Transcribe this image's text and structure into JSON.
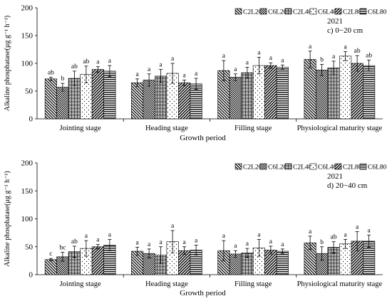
{
  "chart_data": [
    {
      "type": "bar",
      "year_label": "2021",
      "panel_label": "c) 0−20 cm",
      "xlabel": "Growth period",
      "ylabel": "Alkaline phosphatase(μg g⁻¹ h⁻¹)",
      "ylim": [
        0,
        200
      ],
      "yticks": [
        0,
        50,
        100,
        150,
        200
      ],
      "categories": [
        "Jointing stage",
        "Heading stage",
        "Filling stage",
        "Physiological maturity stage"
      ],
      "series": [
        {
          "name": "C2L20",
          "values": [
            72,
            65,
            87,
            107
          ],
          "errors": [
            3,
            7,
            18,
            15
          ],
          "letters": [
            "ab",
            "a",
            "a",
            "a"
          ]
        },
        {
          "name": "C6L20",
          "values": [
            57,
            70,
            75,
            88
          ],
          "errors": [
            7,
            11,
            6,
            10
          ],
          "letters": [
            "b",
            "a",
            "a",
            "b"
          ]
        },
        {
          "name": "C2L40",
          "values": [
            73,
            77,
            83,
            92
          ],
          "errors": [
            13,
            12,
            10,
            12
          ],
          "letters": [
            "ab",
            "a",
            "a",
            "a"
          ]
        },
        {
          "name": "C6L40",
          "values": [
            80,
            82,
            96,
            113
          ],
          "errors": [
            15,
            18,
            15,
            8
          ],
          "letters": [
            "ab",
            "a",
            "a",
            "a"
          ]
        },
        {
          "name": "C2L80",
          "values": [
            89,
            65,
            96,
            100
          ],
          "errors": [
            5,
            5,
            5,
            14
          ],
          "letters": [
            "a",
            "a",
            "a",
            "ab"
          ]
        },
        {
          "name": "C6L80",
          "values": [
            86,
            63,
            93,
            96
          ],
          "errors": [
            10,
            10,
            4,
            10
          ],
          "letters": [
            "a",
            "a",
            "a",
            "ab"
          ]
        }
      ]
    },
    {
      "type": "bar",
      "year_label": "2021",
      "panel_label": "d) 20−40 cm",
      "xlabel": "Growth period",
      "ylabel": "Alkaline phosphatase(μg g⁻¹ h⁻¹)",
      "ylim": [
        0,
        200
      ],
      "yticks": [
        0,
        50,
        100,
        150,
        200
      ],
      "categories": [
        "Jointing stage",
        "Heading stage",
        "Filling stage",
        "Physiological maturity stage"
      ],
      "series": [
        {
          "name": "C2L20",
          "values": [
            27,
            42,
            43,
            57
          ],
          "errors": [
            2,
            7,
            18,
            12
          ],
          "letters": [
            "c",
            "a",
            "a",
            "a"
          ]
        },
        {
          "name": "C6L20",
          "values": [
            32,
            38,
            37,
            38
          ],
          "errors": [
            8,
            8,
            6,
            12
          ],
          "letters": [
            "bc",
            "a",
            "a",
            "b"
          ]
        },
        {
          "name": "C2L40",
          "values": [
            41,
            35,
            39,
            49
          ],
          "errors": [
            10,
            15,
            8,
            10
          ],
          "letters": [
            "ab",
            "a",
            "a",
            "ab"
          ]
        },
        {
          "name": "C6L40",
          "values": [
            47,
            59,
            48,
            55
          ],
          "errors": [
            14,
            20,
            15,
            8
          ],
          "letters": [
            "a",
            "a",
            "a",
            "a"
          ]
        },
        {
          "name": "C2L80",
          "values": [
            50,
            43,
            44,
            60
          ],
          "errors": [
            4,
            7,
            7,
            17
          ],
          "letters": [
            "a",
            "a",
            "a",
            "a"
          ]
        },
        {
          "name": "C6L80",
          "values": [
            53,
            44,
            42,
            60
          ],
          "errors": [
            10,
            9,
            4,
            11
          ],
          "letters": [
            "a",
            "a",
            "a",
            "a"
          ]
        }
      ]
    }
  ]
}
